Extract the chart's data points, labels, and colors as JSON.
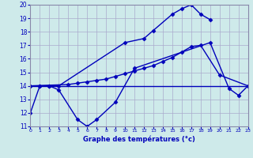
{
  "xlabel": "Graphe des températures (°c)",
  "background_color": "#ceeaea",
  "grid_color": "#aaaacc",
  "line_color": "#0000bb",
  "hours": [
    0,
    1,
    2,
    3,
    4,
    5,
    6,
    7,
    8,
    9,
    10,
    11,
    12,
    13,
    14,
    15,
    16,
    17,
    18,
    19,
    20,
    21,
    22,
    23
  ],
  "series1_x": [
    0,
    1,
    2,
    3,
    10,
    12,
    13,
    15,
    16,
    17,
    18,
    19
  ],
  "series1_y": [
    12,
    14,
    14,
    14,
    17.2,
    17.5,
    18.1,
    19.3,
    19.7,
    20.0,
    19.3,
    18.9
  ],
  "series2_x": [
    0,
    1,
    2,
    3,
    5,
    6,
    7,
    9,
    11,
    19,
    21,
    22,
    23
  ],
  "series2_y": [
    14,
    14,
    14,
    13.7,
    11.5,
    11.0,
    11.5,
    12.8,
    15.3,
    17.2,
    13.8,
    13.3,
    14.0
  ],
  "series3_x": [
    0,
    4,
    5,
    6,
    7,
    8,
    9,
    10,
    11,
    12,
    13,
    14,
    15,
    16,
    17,
    18,
    20,
    23
  ],
  "series3_y": [
    14,
    14.1,
    14.2,
    14.3,
    14.4,
    14.5,
    14.7,
    14.9,
    15.1,
    15.3,
    15.5,
    15.8,
    16.1,
    16.5,
    16.9,
    17.0,
    14.8,
    14.0
  ],
  "series4_x": [
    0,
    23
  ],
  "series4_y": [
    14,
    14
  ],
  "ylim": [
    11,
    20
  ],
  "xlim": [
    0,
    23
  ],
  "yticks": [
    11,
    12,
    13,
    14,
    15,
    16,
    17,
    18,
    19,
    20
  ],
  "xticks": [
    0,
    1,
    2,
    3,
    4,
    5,
    6,
    7,
    8,
    9,
    10,
    11,
    12,
    13,
    14,
    15,
    16,
    17,
    18,
    19,
    20,
    21,
    22,
    23
  ]
}
